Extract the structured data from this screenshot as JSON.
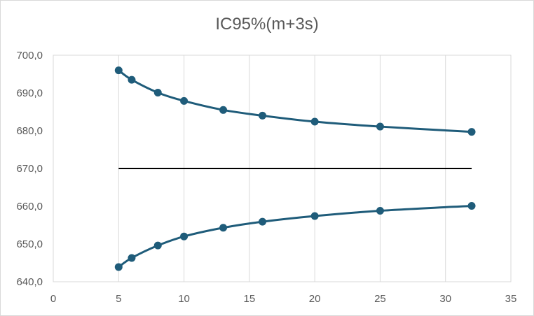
{
  "chart_data": {
    "type": "scatter",
    "title": "IC95%(m+3s)",
    "xlabel": "",
    "ylabel": "",
    "xlim": [
      0,
      35
    ],
    "ylim": [
      640,
      700
    ],
    "xticks": [
      0,
      5,
      10,
      15,
      20,
      25,
      30,
      35
    ],
    "yticks": [
      640,
      650,
      660,
      670,
      680,
      690,
      700
    ],
    "xtick_labels": [
      "0",
      "5",
      "10",
      "15",
      "20",
      "25",
      "30",
      "35"
    ],
    "ytick_labels": [
      "640,0",
      "650,0",
      "660,0",
      "670,0",
      "680,0",
      "690,0",
      "700,0"
    ],
    "grid": "vertical",
    "legend": "none",
    "series": [
      {
        "style": "smooth-line-with-markers",
        "color": "#1f5c7a",
        "x": [
          5,
          6,
          8,
          10,
          13,
          16,
          20,
          25,
          32
        ],
        "y": [
          696.0,
          693.5,
          690.1,
          687.9,
          685.5,
          684.0,
          682.4,
          681.1,
          679.7
        ]
      },
      {
        "style": "smooth-line-with-markers",
        "color": "#1f5c7a",
        "x": [
          5,
          6,
          8,
          10,
          13,
          16,
          20,
          25,
          32
        ],
        "y": [
          643.9,
          646.3,
          649.6,
          652.0,
          654.3,
          655.9,
          657.4,
          658.8,
          660.1
        ]
      },
      {
        "style": "line",
        "color": "#000000",
        "x": [
          5,
          32
        ],
        "y": [
          670.0,
          670.0
        ]
      }
    ]
  }
}
